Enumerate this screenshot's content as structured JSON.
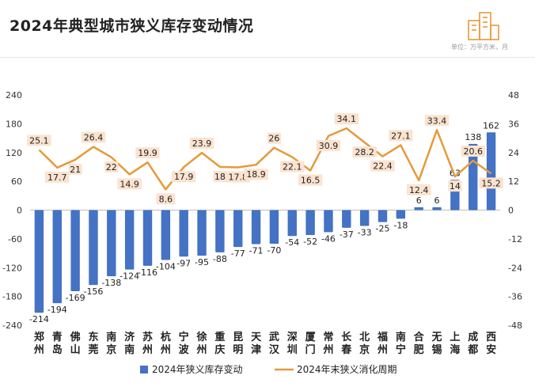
{
  "title": "2024年典型城市狭义库存变动情况",
  "unit_note": "单位：万平方米，月",
  "icons": {
    "logo": "building-logo-icon"
  },
  "colors": {
    "bar": "#4472C4",
    "line": "#E69A3A",
    "label_bg": "#FBE3CF"
  },
  "chart_data": {
    "type": "bar",
    "title": "2024年典型城市狭义库存变动情况",
    "categories": [
      "郑州",
      "青岛",
      "佛山",
      "东莞",
      "南京",
      "济南",
      "苏州",
      "杭州",
      "宁波",
      "徐州",
      "重庆",
      "昆明",
      "天津",
      "武汉",
      "深圳",
      "厦门",
      "常州",
      "长春",
      "北京",
      "福州",
      "南宁",
      "合肥",
      "无锡",
      "上海",
      "成都",
      "西安"
    ],
    "series": [
      {
        "name": "2024年狭义库存变动",
        "type": "bar",
        "axis": "left",
        "values": [
          -214,
          -194,
          -169,
          -156,
          -138,
          -124,
          -116,
          -104,
          -97,
          -95,
          -88,
          -77,
          -71,
          -70,
          -54,
          -52,
          -46,
          -37,
          -33,
          -25,
          -18,
          6,
          6,
          63,
          138,
          162
        ]
      },
      {
        "name": "2024年末狭义消化周期",
        "type": "line",
        "axis": "right",
        "values": [
          25.1,
          17.7,
          21,
          26.4,
          22,
          14.9,
          19.9,
          8.6,
          17.9,
          23.9,
          18,
          17.8,
          18.9,
          26,
          22.1,
          16.5,
          30.9,
          34.1,
          28.2,
          22.4,
          27.1,
          12.4,
          33.4,
          14,
          20.6,
          15.2
        ]
      }
    ],
    "y_left": {
      "ylim": [
        -240,
        240
      ],
      "ticks": [
        -240,
        -180,
        -120,
        -60,
        0,
        60,
        120,
        180,
        240
      ]
    },
    "y_right": {
      "ylim": [
        -48,
        48
      ],
      "ticks": [
        -48,
        -36,
        -24,
        -12,
        0,
        12,
        24,
        36,
        48
      ]
    },
    "grid": false,
    "legend": "bottom"
  }
}
